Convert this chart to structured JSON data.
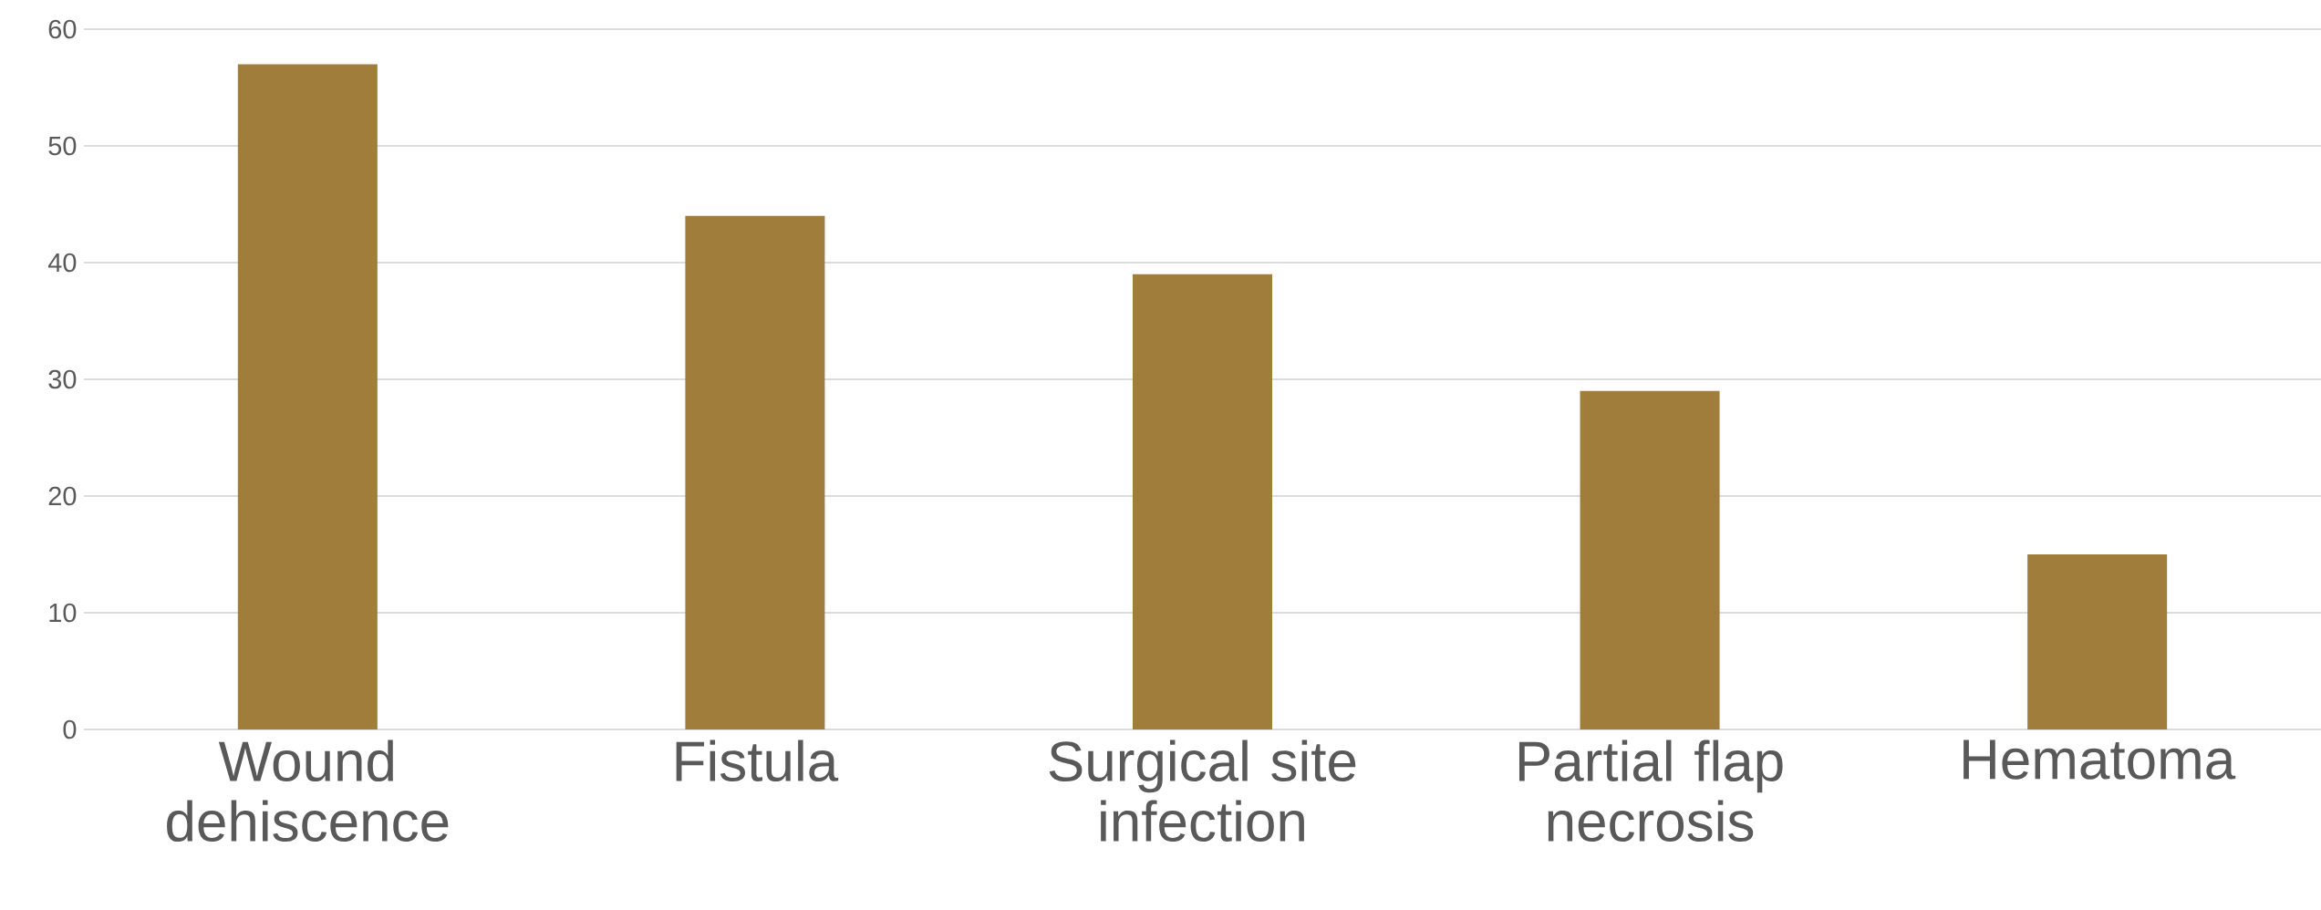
{
  "chart_data": {
    "type": "bar",
    "categories": [
      "Wound dehiscence",
      "Fistula",
      "Surgical site infection",
      "Partial flap necrosis",
      "Hematoma"
    ],
    "values": [
      57,
      44,
      39,
      29,
      15
    ],
    "color": "#a07d3a",
    "ylim": [
      0,
      60
    ],
    "yticks": [
      0,
      10,
      20,
      30,
      40,
      50,
      60
    ],
    "grid": "y"
  }
}
